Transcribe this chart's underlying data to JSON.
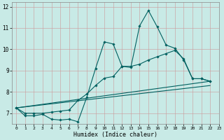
{
  "xlabel": "Humidex (Indice chaleur)",
  "xlim": [
    -0.5,
    23
  ],
  "ylim": [
    6.5,
    12.2
  ],
  "yticks": [
    7,
    8,
    9,
    10,
    11,
    12
  ],
  "xticks": [
    0,
    1,
    2,
    3,
    4,
    5,
    6,
    7,
    8,
    9,
    10,
    11,
    12,
    13,
    14,
    15,
    16,
    17,
    18,
    19,
    20,
    21,
    22,
    23
  ],
  "bg_color": "#c8eae6",
  "grid_color": "#cc9999",
  "line_color": "#006060",
  "line1_x": [
    0,
    1,
    2,
    3,
    4,
    5,
    6,
    7,
    8,
    9,
    10,
    11,
    12,
    13,
    14,
    15,
    16,
    17,
    18,
    19,
    20,
    21,
    22
  ],
  "line1_y": [
    7.25,
    6.88,
    6.88,
    6.95,
    6.72,
    6.68,
    6.72,
    6.6,
    7.75,
    9.1,
    10.35,
    10.25,
    9.2,
    9.15,
    11.1,
    11.82,
    11.05,
    10.2,
    10.05,
    9.5,
    8.62,
    8.62,
    8.5
  ],
  "line2_x": [
    0,
    1,
    2,
    3,
    4,
    5,
    6,
    7,
    8,
    9,
    10,
    11,
    12,
    13,
    14,
    15,
    16,
    17,
    18,
    19,
    20,
    21,
    22
  ],
  "line2_y": [
    7.25,
    7.0,
    7.0,
    7.0,
    7.05,
    7.1,
    7.15,
    7.6,
    7.9,
    8.3,
    8.65,
    8.72,
    9.2,
    9.2,
    9.3,
    9.5,
    9.65,
    9.8,
    9.95,
    9.55,
    8.62,
    8.62,
    8.5
  ],
  "line3_x": [
    0,
    22
  ],
  "line3_y": [
    7.25,
    8.5
  ],
  "line4_x": [
    0,
    22
  ],
  "line4_y": [
    7.25,
    8.3
  ]
}
